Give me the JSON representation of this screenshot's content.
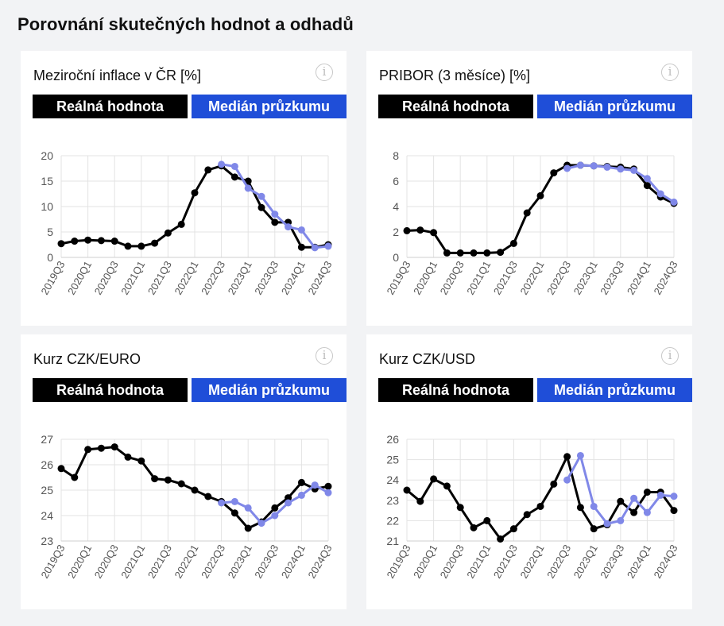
{
  "page": {
    "title": "Porovnání skutečných hodnot a odhadů"
  },
  "legend": {
    "real": "Reálná hodnota",
    "median": "Medián průzkumu"
  },
  "colors": {
    "real": "#000000",
    "median": "#8088e8",
    "legend_median_bg": "#1f4ed8",
    "grid": "#e3e3e3"
  },
  "info_icon": "info-circle-icon",
  "panels": [
    {
      "title": "Meziroční inflace v ČR [%]"
    },
    {
      "title": "PRIBOR (3 měsíce) [%]"
    },
    {
      "title": "Kurz CZK/EURO"
    },
    {
      "title": "Kurz CZK/USD"
    }
  ],
  "chart_data": [
    {
      "type": "line",
      "title": "Meziroční inflace v ČR [%]",
      "x": [
        "2019Q3",
        "2019Q4",
        "2020Q1",
        "2020Q2",
        "2020Q3",
        "2020Q4",
        "2021Q1",
        "2021Q2",
        "2021Q3",
        "2021Q4",
        "2022Q1",
        "2022Q2",
        "2022Q3",
        "2022Q4",
        "2023Q1",
        "2023Q2",
        "2023Q3",
        "2023Q4",
        "2024Q1",
        "2024Q2",
        "2024Q3"
      ],
      "xticks": [
        "2019Q3",
        "2020Q1",
        "2020Q3",
        "2021Q1",
        "2021Q3",
        "2022Q1",
        "2022Q3",
        "2023Q1",
        "2023Q3",
        "2024Q1",
        "2024Q3"
      ],
      "ylim": [
        0,
        20
      ],
      "yticks": [
        0,
        5,
        10,
        15,
        20
      ],
      "grid": true,
      "series": [
        {
          "name": "Reálná hodnota",
          "values": [
            2.7,
            3.2,
            3.4,
            3.3,
            3.2,
            2.2,
            2.2,
            2.8,
            4.8,
            6.5,
            12.7,
            17.2,
            18.0,
            15.8,
            15.0,
            9.8,
            6.9,
            6.9,
            2.0,
            2.0,
            2.5
          ]
        },
        {
          "name": "Medián průzkumu",
          "values": [
            null,
            null,
            null,
            null,
            null,
            null,
            null,
            null,
            null,
            null,
            null,
            null,
            18.3,
            17.9,
            13.6,
            12.0,
            8.5,
            6.0,
            5.4,
            1.9,
            2.2
          ]
        }
      ]
    },
    {
      "type": "line",
      "title": "PRIBOR (3 měsíce) [%]",
      "x": [
        "2019Q3",
        "2019Q4",
        "2020Q1",
        "2020Q2",
        "2020Q3",
        "2020Q4",
        "2021Q1",
        "2021Q2",
        "2021Q3",
        "2021Q4",
        "2022Q1",
        "2022Q2",
        "2022Q3",
        "2022Q4",
        "2023Q1",
        "2023Q2",
        "2023Q3",
        "2023Q4",
        "2024Q1",
        "2024Q2",
        "2024Q3"
      ],
      "xticks": [
        "2019Q3",
        "2020Q1",
        "2020Q3",
        "2021Q1",
        "2021Q3",
        "2022Q1",
        "2022Q3",
        "2023Q1",
        "2023Q3",
        "2024Q1",
        "2024Q3"
      ],
      "ylim": [
        0,
        8
      ],
      "yticks": [
        0,
        2,
        4,
        6,
        8
      ],
      "grid": true,
      "series": [
        {
          "name": "Reálná hodnota",
          "values": [
            2.1,
            2.15,
            1.95,
            0.35,
            0.35,
            0.35,
            0.35,
            0.4,
            1.1,
            3.5,
            4.85,
            6.65,
            7.25,
            7.25,
            7.2,
            7.15,
            7.1,
            6.95,
            5.65,
            4.75,
            4.25
          ]
        },
        {
          "name": "Medián průzkumu",
          "values": [
            null,
            null,
            null,
            null,
            null,
            null,
            null,
            null,
            null,
            null,
            null,
            null,
            7.0,
            7.25,
            7.2,
            7.1,
            6.95,
            6.85,
            6.2,
            5.0,
            4.35
          ]
        }
      ]
    },
    {
      "type": "line",
      "title": "Kurz CZK/EURO",
      "x": [
        "2019Q3",
        "2019Q4",
        "2020Q1",
        "2020Q2",
        "2020Q3",
        "2020Q4",
        "2021Q1",
        "2021Q2",
        "2021Q3",
        "2021Q4",
        "2022Q1",
        "2022Q2",
        "2022Q3",
        "2022Q4",
        "2023Q1",
        "2023Q2",
        "2023Q3",
        "2023Q4",
        "2024Q1",
        "2024Q2",
        "2024Q3"
      ],
      "xticks": [
        "2019Q3",
        "2020Q1",
        "2020Q3",
        "2021Q1",
        "2021Q3",
        "2022Q1",
        "2022Q3",
        "2023Q1",
        "2023Q3",
        "2024Q1",
        "2024Q3"
      ],
      "ylim": [
        23,
        27
      ],
      "yticks": [
        23,
        24,
        25,
        26,
        27
      ],
      "grid": true,
      "series": [
        {
          "name": "Reálná hodnota",
          "values": [
            25.85,
            25.5,
            26.6,
            26.65,
            26.7,
            26.3,
            26.15,
            25.45,
            25.4,
            25.25,
            25.0,
            24.75,
            24.55,
            24.1,
            23.5,
            23.75,
            24.3,
            24.7,
            25.3,
            25.05,
            25.15
          ]
        },
        {
          "name": "Medián průzkumu",
          "values": [
            null,
            null,
            null,
            null,
            null,
            null,
            null,
            null,
            null,
            null,
            null,
            null,
            24.5,
            24.55,
            24.3,
            23.7,
            24.0,
            24.5,
            24.8,
            25.2,
            24.9
          ]
        }
      ]
    },
    {
      "type": "line",
      "title": "Kurz CZK/USD",
      "x": [
        "2019Q3",
        "2019Q4",
        "2020Q1",
        "2020Q2",
        "2020Q3",
        "2020Q4",
        "2021Q1",
        "2021Q2",
        "2021Q3",
        "2021Q4",
        "2022Q1",
        "2022Q2",
        "2022Q3",
        "2022Q4",
        "2023Q1",
        "2023Q2",
        "2023Q3",
        "2023Q4",
        "2024Q1",
        "2024Q2",
        "2024Q3"
      ],
      "xticks": [
        "2019Q3",
        "2020Q1",
        "2020Q3",
        "2021Q1",
        "2021Q3",
        "2022Q1",
        "2022Q3",
        "2023Q1",
        "2023Q3",
        "2024Q1",
        "2024Q3"
      ],
      "ylim": [
        21,
        26
      ],
      "yticks": [
        21,
        22,
        23,
        24,
        25,
        26
      ],
      "grid": true,
      "series": [
        {
          "name": "Reálná hodnota",
          "values": [
            23.5,
            22.95,
            24.05,
            23.7,
            22.65,
            21.65,
            22.0,
            21.1,
            21.6,
            22.3,
            22.7,
            23.8,
            25.15,
            22.65,
            21.6,
            21.8,
            22.95,
            22.4,
            23.4,
            23.4,
            22.5
          ]
        },
        {
          "name": "Medián průzkumu",
          "values": [
            null,
            null,
            null,
            null,
            null,
            null,
            null,
            null,
            null,
            null,
            null,
            null,
            24.0,
            25.2,
            22.7,
            21.85,
            22.0,
            23.1,
            22.4,
            23.25,
            23.2
          ]
        }
      ]
    }
  ]
}
